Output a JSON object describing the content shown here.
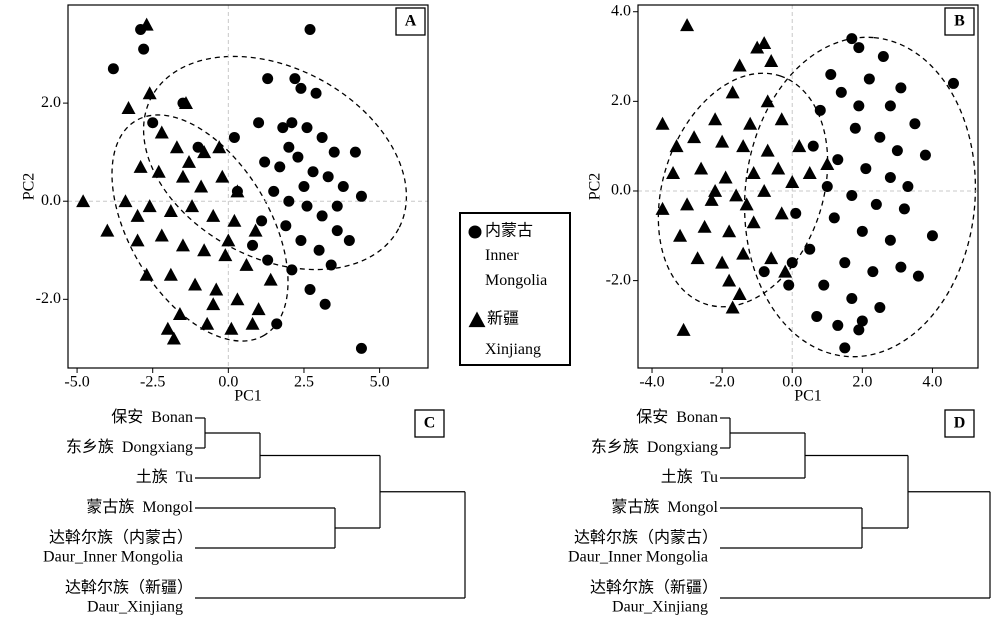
{
  "legend": [
    {
      "marker": "circle",
      "label": "内蒙古",
      "label_en": "Inner Mongolia"
    },
    {
      "marker": "triangle",
      "label": "新疆",
      "label_en": "Xinjiang"
    }
  ],
  "chart_data": [
    {
      "type": "scatter",
      "label": "A",
      "x_label": "PC1",
      "y_label": "PC2",
      "xlim": [
        -5.3,
        6.6
      ],
      "ylim": [
        -3.4,
        4.0
      ],
      "xticks": [
        {
          "value": -5,
          "label": "-5.0"
        },
        -2.5,
        {
          "value": 0,
          "label": "0.0"
        },
        2.5,
        {
          "value": 5,
          "label": "5.0"
        }
      ],
      "yticks": [
        {
          "value": -2,
          "label": "-2.0"
        },
        {
          "value": 0,
          "label": "0.0"
        },
        {
          "value": 2,
          "label": "2.0"
        }
      ],
      "zero_lines": true,
      "series": [
        {
          "marker": "circle",
          "color": "#000000",
          "x": [
            -3.8,
            -2.8,
            -2.9,
            2.7,
            4.4,
            -1.5,
            -2.5,
            -1.0,
            0.2,
            1.0,
            1.3,
            2.2,
            2.4,
            2.9,
            1.8,
            2.1,
            2.6,
            3.1,
            3.5,
            4.2,
            1.2,
            1.7,
            2.3,
            2.8,
            3.3,
            3.8,
            4.4,
            1.5,
            2.0,
            2.6,
            3.1,
            3.6,
            4.0,
            1.1,
            1.9,
            2.4,
            3.0,
            3.4,
            2.1,
            1.3,
            2.7,
            3.2,
            1.6,
            0.8,
            0.3,
            2.0,
            2.5,
            3.6
          ],
          "y": [
            2.7,
            3.1,
            3.5,
            3.5,
            -3.0,
            2.0,
            1.6,
            1.1,
            1.3,
            1.6,
            2.5,
            2.5,
            2.3,
            2.2,
            1.5,
            1.6,
            1.5,
            1.3,
            1.0,
            1.0,
            0.8,
            0.7,
            0.9,
            0.6,
            0.5,
            0.3,
            0.1,
            0.2,
            0.0,
            -0.1,
            -0.3,
            -0.6,
            -0.8,
            -0.4,
            -0.5,
            -0.8,
            -1.0,
            -1.3,
            -1.4,
            -1.2,
            -1.8,
            -2.1,
            -2.5,
            -0.9,
            0.2,
            1.1,
            0.3,
            -0.1
          ]
        },
        {
          "marker": "triangle",
          "color": "#000000",
          "x": [
            -4.8,
            -4.0,
            -2.7,
            -3.3,
            -2.6,
            -1.4,
            -2.2,
            -1.7,
            -0.8,
            -0.3,
            -2.9,
            -2.3,
            -1.5,
            -0.9,
            -0.2,
            0.3,
            -3.4,
            -2.6,
            -1.9,
            -1.2,
            -0.5,
            0.2,
            0.9,
            -3.0,
            -2.2,
            -1.5,
            -0.8,
            -0.1,
            0.6,
            -2.7,
            -1.9,
            -1.1,
            -0.4,
            0.3,
            1.0,
            -1.6,
            -0.7,
            0.1,
            -1.8,
            -2.0,
            0.8,
            1.4,
            -3.0,
            -1.3,
            0.0,
            -0.5
          ],
          "y": [
            0.0,
            -0.6,
            3.6,
            1.9,
            2.2,
            2.0,
            1.4,
            1.1,
            1.0,
            1.1,
            0.7,
            0.6,
            0.5,
            0.3,
            0.5,
            0.2,
            0.0,
            -0.1,
            -0.2,
            -0.1,
            -0.3,
            -0.4,
            -0.6,
            -0.8,
            -0.7,
            -0.9,
            -1.0,
            -1.1,
            -1.3,
            -1.5,
            -1.5,
            -1.7,
            -1.8,
            -2.0,
            -2.2,
            -2.3,
            -2.5,
            -2.6,
            -2.8,
            -2.6,
            -2.5,
            -1.6,
            -0.3,
            0.8,
            -0.8,
            -2.1
          ]
        }
      ]
    },
    {
      "type": "scatter",
      "label": "B",
      "x_label": "PC1",
      "y_label": "PC2",
      "xlim": [
        -4.4,
        5.3
      ],
      "ylim": [
        -3.95,
        4.15
      ],
      "xticks": [
        {
          "value": -4,
          "label": "-4.0"
        },
        {
          "value": -2,
          "label": "-2.0"
        },
        {
          "value": 0,
          "label": "0.0"
        },
        {
          "value": 2,
          "label": "2.0"
        },
        {
          "value": 4,
          "label": "4.0"
        }
      ],
      "yticks": [
        {
          "value": -2,
          "label": "-2.0"
        },
        {
          "value": 0,
          "label": "0.0"
        },
        {
          "value": 2,
          "label": "2.0"
        },
        {
          "value": 4,
          "label": "4.0"
        }
      ],
      "zero_lines": true,
      "series": [
        {
          "marker": "circle",
          "color": "#000000",
          "x": [
            4.6,
            1.7,
            1.9,
            2.6,
            1.1,
            2.2,
            3.1,
            1.4,
            0.8,
            2.8,
            3.5,
            1.8,
            2.5,
            0.6,
            3.0,
            3.8,
            1.3,
            2.1,
            2.8,
            1.0,
            1.7,
            2.4,
            3.2,
            4.0,
            1.2,
            2.0,
            2.8,
            0.5,
            1.5,
            2.3,
            3.1,
            3.6,
            0.9,
            1.7,
            2.5,
            0.0,
            -0.1,
            0.7,
            1.3,
            1.9,
            1.5,
            2.0,
            -0.8,
            0.1,
            1.9,
            3.3
          ],
          "y": [
            2.4,
            3.4,
            3.2,
            3.0,
            2.6,
            2.5,
            2.3,
            2.2,
            1.8,
            1.9,
            1.5,
            1.4,
            1.2,
            1.0,
            0.9,
            0.8,
            0.7,
            0.5,
            0.3,
            0.1,
            -0.1,
            -0.3,
            -0.4,
            -1.0,
            -0.6,
            -0.9,
            -1.1,
            -1.3,
            -1.6,
            -1.8,
            -1.7,
            -1.9,
            -2.1,
            -2.4,
            -2.6,
            -1.6,
            -2.1,
            -2.8,
            -3.0,
            -3.1,
            -3.5,
            -2.9,
            -1.8,
            -0.5,
            1.9,
            0.1
          ]
        },
        {
          "marker": "triangle",
          "color": "#000000",
          "x": [
            -3.0,
            -0.8,
            -1.0,
            -0.6,
            -1.5,
            -1.7,
            -0.7,
            -3.7,
            -2.2,
            -1.2,
            -0.3,
            -3.3,
            -2.8,
            -2.0,
            -1.4,
            -0.7,
            0.2,
            -3.4,
            -2.6,
            -1.9,
            -1.1,
            -0.4,
            0.5,
            1.0,
            -3.7,
            -3.0,
            -2.3,
            -1.6,
            -0.8,
            0.0,
            -3.2,
            -2.5,
            -1.8,
            -1.1,
            -0.3,
            -2.7,
            -2.0,
            -1.4,
            -0.6,
            -1.8,
            -1.5,
            -1.7,
            -3.1,
            -0.2,
            -2.2,
            -1.3
          ],
          "y": [
            3.7,
            3.3,
            3.2,
            2.9,
            2.8,
            2.2,
            2.0,
            1.5,
            1.6,
            1.5,
            1.6,
            1.0,
            1.2,
            1.1,
            1.0,
            0.9,
            1.0,
            0.4,
            0.5,
            0.3,
            0.4,
            0.5,
            0.4,
            0.6,
            -0.4,
            -0.3,
            -0.2,
            -0.1,
            0.0,
            0.2,
            -1.0,
            -0.8,
            -0.9,
            -0.7,
            -0.5,
            -1.5,
            -1.6,
            -1.4,
            -1.5,
            -2.0,
            -2.3,
            -2.6,
            -3.1,
            -1.8,
            0.0,
            -0.3
          ]
        }
      ]
    },
    {
      "type": "dendrogram",
      "label": "C",
      "leaves": [
        {
          "label": [
            "保安",
            "Bonan"
          ]
        },
        {
          "label": [
            "东乡族",
            "Dongxiang"
          ]
        },
        {
          "label": [
            "土族",
            "Tu"
          ]
        },
        {
          "label": [
            "蒙古族",
            "Mongol"
          ]
        },
        {
          "label": [
            "达斡尔族（内蒙古）",
            "Daur_Inner Mongolia"
          ],
          "stacked": true
        },
        {
          "label": [
            "达斡尔族（新疆）",
            "Daur_Xinjiang"
          ],
          "stacked": true
        }
      ],
      "links": [
        [
          0,
          1,
          0.1
        ],
        [
          6,
          2,
          0.65
        ],
        [
          3,
          4,
          1.4
        ],
        [
          7,
          8,
          1.85
        ],
        [
          9,
          5,
          2.7
        ]
      ]
    },
    {
      "type": "dendrogram",
      "label": "D",
      "leaves": [
        {
          "label": [
            "保安",
            "Bonan"
          ]
        },
        {
          "label": [
            "东乡族",
            "Dongxiang"
          ]
        },
        {
          "label": [
            "土族",
            "Tu"
          ]
        },
        {
          "label": [
            "蒙古族",
            "Mongol"
          ]
        },
        {
          "label": [
            "达斡尔族（内蒙古）",
            "Daur_Inner Mongolia"
          ],
          "stacked": true
        },
        {
          "label": [
            "达斡尔族（新疆）",
            "Daur_Xinjiang"
          ],
          "stacked": true
        }
      ],
      "links": [
        [
          0,
          1,
          0.1
        ],
        [
          6,
          2,
          0.85
        ],
        [
          3,
          4,
          1.42
        ],
        [
          7,
          8,
          1.88
        ],
        [
          9,
          5,
          2.7
        ]
      ]
    }
  ]
}
